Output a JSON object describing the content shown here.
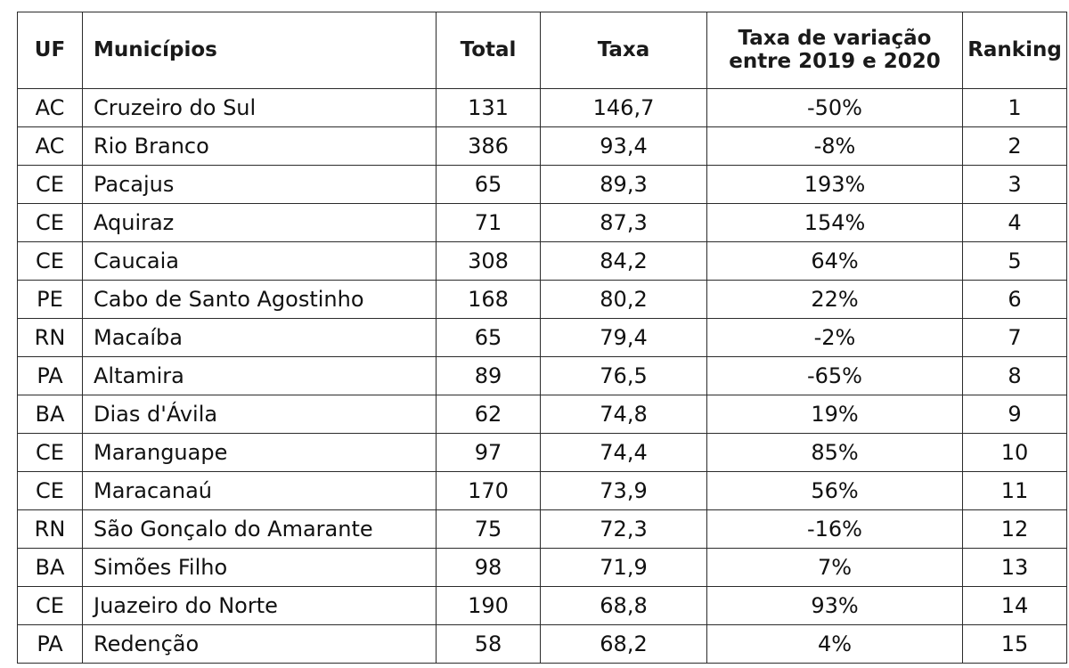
{
  "table": {
    "headers": {
      "uf": "UF",
      "municipios": "Municípios",
      "total": "Total",
      "taxa": "Taxa",
      "variacao_line1": "Taxa de variação",
      "variacao_line2": "entre 2019 e 2020",
      "ranking": "Ranking"
    },
    "rows": [
      {
        "uf": "AC",
        "municipio": "Cruzeiro do Sul",
        "total": "131",
        "taxa": "146,7",
        "variacao": "-50%",
        "ranking": "1"
      },
      {
        "uf": "AC",
        "municipio": "Rio Branco",
        "total": "386",
        "taxa": "93,4",
        "variacao": "-8%",
        "ranking": "2"
      },
      {
        "uf": "CE",
        "municipio": "Pacajus",
        "total": "65",
        "taxa": "89,3",
        "variacao": "193%",
        "ranking": "3"
      },
      {
        "uf": "CE",
        "municipio": "Aquiraz",
        "total": "71",
        "taxa": "87,3",
        "variacao": "154%",
        "ranking": "4"
      },
      {
        "uf": "CE",
        "municipio": "Caucaia",
        "total": "308",
        "taxa": "84,2",
        "variacao": "64%",
        "ranking": "5"
      },
      {
        "uf": "PE",
        "municipio": "Cabo de Santo Agostinho",
        "total": "168",
        "taxa": "80,2",
        "variacao": "22%",
        "ranking": "6"
      },
      {
        "uf": "RN",
        "municipio": "Macaíba",
        "total": "65",
        "taxa": "79,4",
        "variacao": "-2%",
        "ranking": "7"
      },
      {
        "uf": "PA",
        "municipio": "Altamira",
        "total": "89",
        "taxa": "76,5",
        "variacao": "-65%",
        "ranking": "8"
      },
      {
        "uf": "BA",
        "municipio": "Dias d'Ávila",
        "total": "62",
        "taxa": "74,8",
        "variacao": "19%",
        "ranking": "9"
      },
      {
        "uf": "CE",
        "municipio": "Maranguape",
        "total": "97",
        "taxa": "74,4",
        "variacao": "85%",
        "ranking": "10"
      },
      {
        "uf": "CE",
        "municipio": "Maracanaú",
        "total": "170",
        "taxa": "73,9",
        "variacao": "56%",
        "ranking": "11"
      },
      {
        "uf": "RN",
        "municipio": "São Gonçalo do Amarante",
        "total": "75",
        "taxa": "72,3",
        "variacao": "-16%",
        "ranking": "12"
      },
      {
        "uf": "BA",
        "municipio": "Simões Filho",
        "total": "98",
        "taxa": "71,9",
        "variacao": "7%",
        "ranking": "13"
      },
      {
        "uf": "CE",
        "municipio": "Juazeiro do Norte",
        "total": "190",
        "taxa": "68,8",
        "variacao": "93%",
        "ranking": "14"
      },
      {
        "uf": "PA",
        "municipio": "Redenção",
        "total": "58",
        "taxa": "68,2",
        "variacao": "4%",
        "ranking": "15"
      }
    ]
  }
}
